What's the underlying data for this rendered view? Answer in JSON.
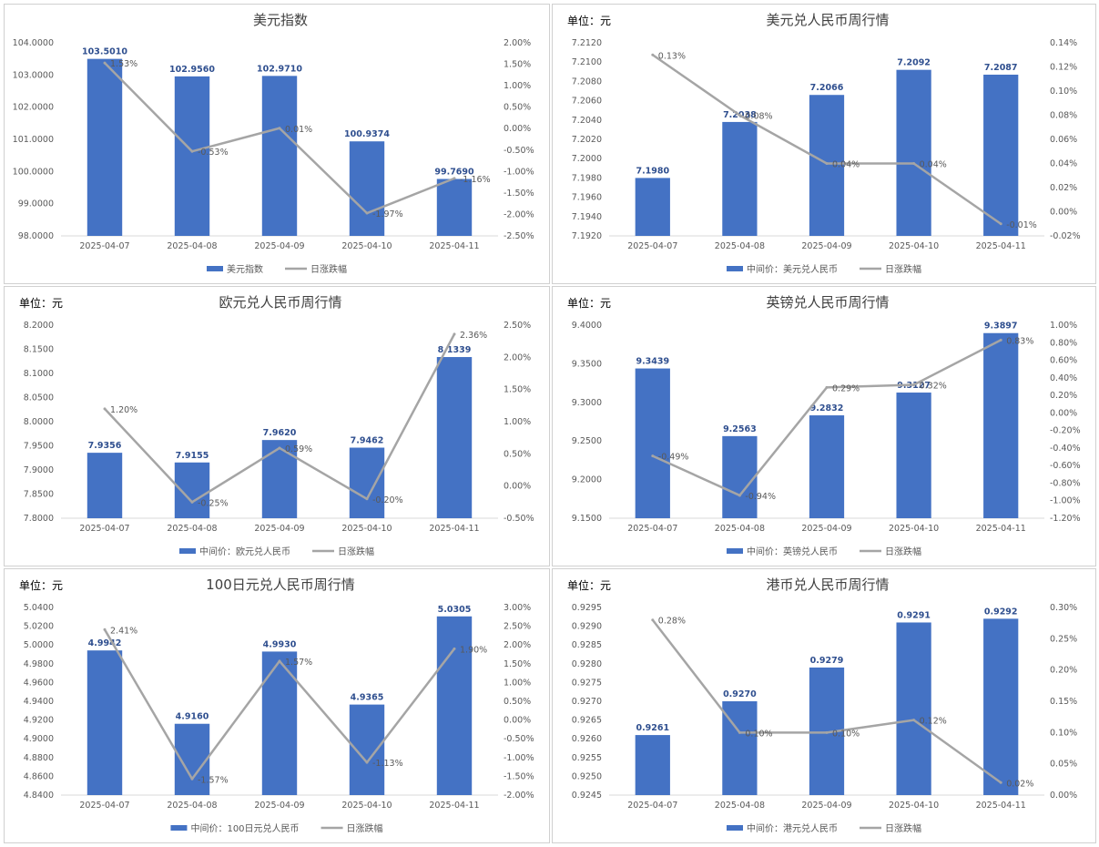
{
  "colors": {
    "bar": "#4472c4",
    "line": "#a5a5a5",
    "bar_label": "#2f4f8f",
    "text": "#595959",
    "title": "#404040"
  },
  "chart_data": [
    {
      "type": "bar+line",
      "title": "美元指数",
      "unit": "",
      "categories": [
        "2025-04-07",
        "2025-04-08",
        "2025-04-09",
        "2025-04-10",
        "2025-04-11"
      ],
      "bar_series": {
        "name": "美元指数",
        "values": [
          103.501,
          102.956,
          102.971,
          100.9374,
          99.769
        ],
        "labels": [
          "103.5010",
          "102.9560",
          "102.9710",
          "100.9374",
          "99.7690"
        ]
      },
      "line_series": {
        "name": "日涨跌幅",
        "values": [
          1.53,
          -0.53,
          0.01,
          -1.97,
          -1.16
        ],
        "labels": [
          "1.53%",
          "-0.53%",
          "0.01%",
          "-1.97%",
          "-1.16%"
        ]
      },
      "y_left": {
        "min": 98,
        "max": 104,
        "step": 1,
        "decimals": 4
      },
      "y_right": {
        "min": -2.5,
        "max": 2,
        "step": 0.5,
        "decimals": 2
      },
      "grid": false,
      "legend": "bottom"
    },
    {
      "type": "bar+line",
      "title": "美元兑人民币周行情",
      "unit": "单位：元",
      "categories": [
        "2025-04-07",
        "2025-04-08",
        "2025-04-09",
        "2025-04-10",
        "2025-04-11"
      ],
      "bar_series": {
        "name": "中间价：美元兑人民币",
        "values": [
          7.198,
          7.2038,
          7.2066,
          7.2092,
          7.2087
        ],
        "labels": [
          "7.1980",
          "7.2038",
          "7.2066",
          "7.2092",
          "7.2087"
        ]
      },
      "line_series": {
        "name": "日涨跌幅",
        "values": [
          0.13,
          0.08,
          0.04,
          0.04,
          -0.01
        ],
        "labels": [
          "0.13%",
          "0.08%",
          "0.04%",
          "0.04%",
          "-0.01%"
        ]
      },
      "y_left": {
        "min": 7.192,
        "max": 7.212,
        "step": 0.002,
        "decimals": 4
      },
      "y_right": {
        "min": -0.02,
        "max": 0.14,
        "step": 0.02,
        "decimals": 2
      },
      "grid": false,
      "legend": "bottom"
    },
    {
      "type": "bar+line",
      "title": "欧元兑人民币周行情",
      "unit": "单位：元",
      "categories": [
        "2025-04-07",
        "2025-04-08",
        "2025-04-09",
        "2025-04-10",
        "2025-04-11"
      ],
      "bar_series": {
        "name": "中间价：欧元兑人民币",
        "values": [
          7.9356,
          7.9155,
          7.962,
          7.9462,
          8.1339
        ],
        "labels": [
          "7.9356",
          "7.9155",
          "7.9620",
          "7.9462",
          "8.1339"
        ]
      },
      "line_series": {
        "name": "日涨跌幅",
        "values": [
          1.2,
          -0.25,
          0.59,
          -0.2,
          2.36
        ],
        "labels": [
          "1.20%",
          "-0.25%",
          "0.59%",
          "-0.20%",
          "2.36%"
        ]
      },
      "y_left": {
        "min": 7.8,
        "max": 8.2,
        "step": 0.05,
        "decimals": 4
      },
      "y_right": {
        "min": -0.5,
        "max": 2.5,
        "step": 0.5,
        "decimals": 2
      },
      "grid": false,
      "legend": "bottom"
    },
    {
      "type": "bar+line",
      "title": "英镑兑人民币周行情",
      "unit": "单位：元",
      "categories": [
        "2025-04-07",
        "2025-04-08",
        "2025-04-09",
        "2025-04-10",
        "2025-04-11"
      ],
      "bar_series": {
        "name": "中间价：英镑兑人民币",
        "values": [
          9.3439,
          9.2563,
          9.2832,
          9.3127,
          9.3897
        ],
        "labels": [
          "9.3439",
          "9.2563",
          "9.2832",
          "9.3127",
          "9.3897"
        ]
      },
      "line_series": {
        "name": "日涨跌幅",
        "values": [
          -0.49,
          -0.94,
          0.29,
          0.32,
          0.83
        ],
        "labels": [
          "-0.49%",
          "-0.94%",
          "0.29%",
          "0.32%",
          "0.83%"
        ]
      },
      "y_left": {
        "min": 9.15,
        "max": 9.4,
        "step": 0.05,
        "decimals": 4
      },
      "y_right": {
        "min": -1.2,
        "max": 1.0,
        "step": 0.2,
        "decimals": 2
      },
      "grid": false,
      "legend": "bottom"
    },
    {
      "type": "bar+line",
      "title": "100日元兑人民币周行情",
      "unit": "单位：元",
      "categories": [
        "2025-04-07",
        "2025-04-08",
        "2025-04-09",
        "2025-04-10",
        "2025-04-11"
      ],
      "bar_series": {
        "name": "中间价：100日元兑人民币",
        "values": [
          4.9942,
          4.916,
          4.993,
          4.9365,
          5.0305
        ],
        "labels": [
          "4.9942",
          "4.9160",
          "4.9930",
          "4.9365",
          "5.0305"
        ]
      },
      "line_series": {
        "name": "日涨跌幅",
        "values": [
          2.41,
          -1.57,
          1.57,
          -1.13,
          1.9
        ],
        "labels": [
          "2.41%",
          "-1.57%",
          "1.57%",
          "-1.13%",
          "1.90%"
        ]
      },
      "y_left": {
        "min": 4.84,
        "max": 5.04,
        "step": 0.02,
        "decimals": 4
      },
      "y_right": {
        "min": -2.0,
        "max": 3.0,
        "step": 0.5,
        "decimals": 2
      },
      "grid": false,
      "legend": "bottom"
    },
    {
      "type": "bar+line",
      "title": "港币兑人民币周行情",
      "unit": "单位：元",
      "categories": [
        "2025-04-07",
        "2025-04-08",
        "2025-04-09",
        "2025-04-10",
        "2025-04-11"
      ],
      "bar_series": {
        "name": "中间价：港元兑人民币",
        "values": [
          0.9261,
          0.927,
          0.9279,
          0.9291,
          0.9292
        ],
        "labels": [
          "0.9261",
          "0.9270",
          "0.9279",
          "0.9291",
          "0.9292"
        ]
      },
      "line_series": {
        "name": "日涨跌幅",
        "values": [
          0.28,
          0.1,
          0.1,
          0.12,
          0.02
        ],
        "labels": [
          "0.28%",
          "0.10%",
          "0.10%",
          "0.12%",
          "0.02%"
        ]
      },
      "y_left": {
        "min": 0.9245,
        "max": 0.9295,
        "step": 0.0005,
        "decimals": 4
      },
      "y_right": {
        "min": 0,
        "max": 0.3,
        "step": 0.05,
        "decimals": 2
      },
      "grid": false,
      "legend": "bottom"
    }
  ]
}
